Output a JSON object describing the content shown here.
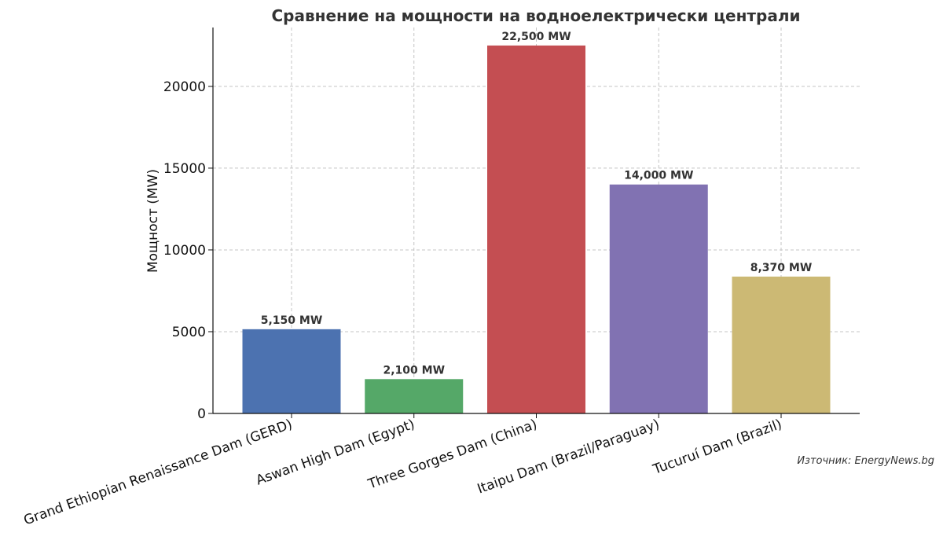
{
  "chart_data": {
    "type": "bar",
    "title": "Сравнение на мощности на водноелектрически централи",
    "xlabel": "",
    "ylabel": "Мощност (MW)",
    "ylim": [
      0,
      23600
    ],
    "yticks": [
      0,
      5000,
      10000,
      15000,
      20000
    ],
    "grid": true,
    "categories": [
      "Grand Ethiopian Renaissance Dam (GERD)",
      "Aswan High Dam (Egypt)",
      "Three Gorges Dam (China)",
      "Itaipu Dam (Brazil/Paraguay)",
      "Tucuruí Dam (Brazil)"
    ],
    "values": [
      5150,
      2100,
      22500,
      14000,
      8370
    ],
    "data_labels": [
      "5,150 MW",
      "2,100 MW",
      "22,500 MW",
      "14,000 MW",
      "8,370 MW"
    ],
    "colors": [
      "#4c72b0",
      "#55a868",
      "#c44e52",
      "#8172b2",
      "#ccb974"
    ],
    "source": "Източник: EnergyNews.bg"
  }
}
